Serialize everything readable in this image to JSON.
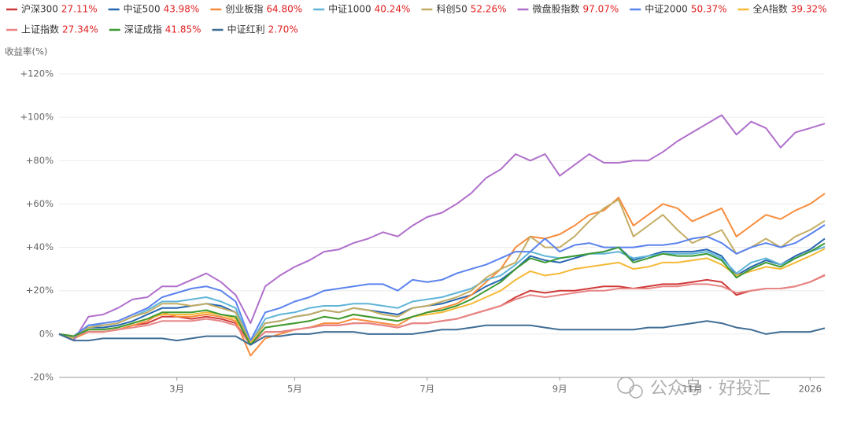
{
  "chart_data": {
    "type": "line",
    "y_axis_label": "收益率(%)",
    "watermark": "公众号 · 好投汇",
    "categories": [
      null,
      null,
      null,
      null,
      null,
      null,
      null,
      null,
      "3月",
      null,
      null,
      null,
      null,
      null,
      null,
      null,
      "5月",
      null,
      null,
      null,
      null,
      null,
      null,
      null,
      null,
      "7月",
      null,
      null,
      null,
      null,
      null,
      null,
      null,
      null,
      "9月",
      null,
      null,
      null,
      null,
      null,
      null,
      null,
      null,
      "11月",
      null,
      null,
      null,
      null,
      null,
      null,
      null,
      "2026",
      null
    ],
    "ylim": [
      -20,
      120
    ],
    "yticks": [
      {
        "value": -20,
        "label": "-20%"
      },
      {
        "value": 0,
        "label": "0%"
      },
      {
        "value": 20,
        "label": "+20%"
      },
      {
        "value": 40,
        "label": "+40%"
      },
      {
        "value": 60,
        "label": "+60%"
      },
      {
        "value": 80,
        "label": "+80%"
      },
      {
        "value": 100,
        "label": "+100%"
      },
      {
        "value": 120,
        "label": "+120%"
      }
    ],
    "grid": true,
    "series": [
      {
        "name": "沪深300",
        "last_label": "27.11%",
        "color": "#d03a3a",
        "values": [
          0,
          -2,
          1,
          1,
          2,
          4,
          5,
          8,
          8,
          7,
          8,
          7,
          5,
          -5,
          1,
          1,
          2,
          3,
          4,
          4,
          5,
          5,
          4,
          3,
          5,
          5,
          6,
          7,
          9,
          11,
          13,
          17,
          20,
          19,
          20,
          20,
          21,
          22,
          22,
          21,
          22,
          23,
          23,
          24,
          25,
          24,
          18,
          20,
          21,
          21,
          22,
          24,
          27.11
        ]
      },
      {
        "name": "中证500",
        "last_label": "43.98%",
        "color": "#2566b0",
        "values": [
          0,
          -2,
          3,
          3,
          4,
          6,
          9,
          12,
          12,
          13,
          14,
          13,
          10,
          -4,
          5,
          6,
          8,
          9,
          11,
          10,
          12,
          11,
          10,
          9,
          12,
          13,
          14,
          16,
          18,
          22,
          25,
          30,
          36,
          34,
          33,
          35,
          37,
          38,
          40,
          34,
          36,
          38,
          38,
          38,
          39,
          36,
          27,
          31,
          34,
          32,
          36,
          39,
          43.98
        ]
      },
      {
        "name": "创业板指",
        "last_label": "64.80%",
        "color": "#f78c3c",
        "values": [
          0,
          -2,
          1,
          1,
          2,
          4,
          6,
          10,
          8,
          8,
          9,
          8,
          6,
          -10,
          -2,
          0,
          2,
          3,
          5,
          5,
          7,
          6,
          5,
          4,
          8,
          10,
          12,
          14,
          18,
          24,
          30,
          40,
          45,
          44,
          46,
          50,
          55,
          57,
          63,
          50,
          55,
          60,
          58,
          52,
          55,
          58,
          45,
          50,
          55,
          53,
          57,
          60,
          64.8
        ]
      },
      {
        "name": "中证1000",
        "last_label": "40.24%",
        "color": "#5fb4d8",
        "values": [
          0,
          -1,
          4,
          4,
          5,
          8,
          11,
          15,
          15,
          16,
          17,
          15,
          12,
          -4,
          7,
          9,
          10,
          12,
          13,
          13,
          14,
          14,
          13,
          12,
          15,
          16,
          17,
          19,
          21,
          25,
          27,
          32,
          38,
          36,
          35,
          36,
          37,
          37,
          38,
          35,
          36,
          37,
          37,
          37,
          38,
          35,
          28,
          33,
          35,
          32,
          35,
          38,
          40.24
        ]
      },
      {
        "name": "科创50",
        "last_label": "52.26%",
        "color": "#c4ad64",
        "values": [
          0,
          -2,
          3,
          4,
          5,
          8,
          10,
          14,
          14,
          13,
          14,
          12,
          10,
          -4,
          5,
          6,
          8,
          9,
          11,
          10,
          12,
          11,
          9,
          8,
          12,
          13,
          15,
          17,
          20,
          26,
          30,
          33,
          45,
          40,
          40,
          45,
          52,
          58,
          62,
          45,
          50,
          55,
          48,
          42,
          45,
          48,
          37,
          40,
          44,
          40,
          45,
          48,
          52.26
        ]
      },
      {
        "name": "微盘股指数",
        "last_label": "97.07%",
        "color": "#b06fcb",
        "values": [
          0,
          -3,
          8,
          9,
          12,
          16,
          17,
          22,
          22,
          25,
          28,
          24,
          18,
          5,
          22,
          27,
          31,
          34,
          38,
          39,
          42,
          44,
          47,
          45,
          50,
          54,
          56,
          60,
          65,
          72,
          76,
          83,
          80,
          83,
          73,
          78,
          83,
          79,
          79,
          80,
          80,
          84,
          89,
          93,
          97,
          101,
          92,
          98,
          95,
          86,
          93,
          95,
          97.07
        ]
      },
      {
        "name": "中证2000",
        "last_label": "50.37%",
        "color": "#5b83ee",
        "values": [
          0,
          -1,
          4,
          5,
          6,
          9,
          12,
          17,
          19,
          21,
          22,
          20,
          15,
          -3,
          10,
          12,
          15,
          17,
          20,
          21,
          22,
          23,
          23,
          20,
          25,
          24,
          25,
          28,
          30,
          32,
          35,
          38,
          38,
          44,
          38,
          41,
          42,
          40,
          40,
          40,
          41,
          41,
          42,
          44,
          45,
          42,
          37,
          40,
          42,
          40,
          42,
          46,
          50.37
        ]
      },
      {
        "name": "全A指数",
        "last_label": "39.32%",
        "color": "#f5b936",
        "values": [
          0,
          -1,
          2,
          2,
          3,
          5,
          7,
          9,
          9,
          9,
          10,
          9,
          7,
          -4,
          3,
          4,
          5,
          6,
          8,
          7,
          9,
          8,
          7,
          6,
          8,
          9,
          10,
          12,
          14,
          17,
          20,
          25,
          29,
          27,
          28,
          30,
          31,
          32,
          33,
          30,
          31,
          33,
          33,
          34,
          35,
          32,
          27,
          29,
          31,
          30,
          33,
          36,
          39.32
        ]
      },
      {
        "name": "上证指数",
        "last_label": "27.34%",
        "color": "#e88585",
        "values": [
          0,
          -1,
          1,
          1,
          2,
          3,
          4,
          6,
          6,
          6,
          7,
          6,
          4,
          -5,
          1,
          1,
          2,
          3,
          4,
          4,
          5,
          5,
          4,
          3,
          5,
          5,
          6,
          7,
          9,
          11,
          13,
          16,
          18,
          17,
          18,
          19,
          20,
          20,
          21,
          21,
          21,
          22,
          22,
          23,
          23,
          22,
          19,
          20,
          21,
          21,
          22,
          24,
          27.34
        ]
      },
      {
        "name": "深证成指",
        "last_label": "41.85%",
        "color": "#3c9a33",
        "values": [
          0,
          -1,
          2,
          2,
          3,
          5,
          7,
          10,
          10,
          10,
          11,
          9,
          8,
          -5,
          3,
          4,
          5,
          6,
          8,
          7,
          9,
          8,
          7,
          6,
          8,
          10,
          11,
          13,
          16,
          20,
          24,
          30,
          35,
          33,
          35,
          36,
          37,
          38,
          40,
          33,
          35,
          37,
          36,
          36,
          37,
          34,
          26,
          30,
          33,
          31,
          35,
          38,
          41.85
        ]
      },
      {
        "name": "中证红利",
        "last_label": "2.70%",
        "color": "#3f6d94",
        "values": [
          0,
          -3,
          -3,
          -2,
          -2,
          -2,
          -2,
          -2,
          -3,
          -2,
          -1,
          -1,
          -1,
          -5,
          -1,
          -1,
          0,
          0,
          1,
          1,
          1,
          0,
          0,
          0,
          0,
          1,
          2,
          2,
          3,
          4,
          4,
          4,
          4,
          3,
          2,
          2,
          2,
          2,
          2,
          2,
          3,
          3,
          4,
          5,
          6,
          5,
          3,
          2,
          0,
          1,
          1,
          1,
          2.7
        ]
      }
    ]
  }
}
